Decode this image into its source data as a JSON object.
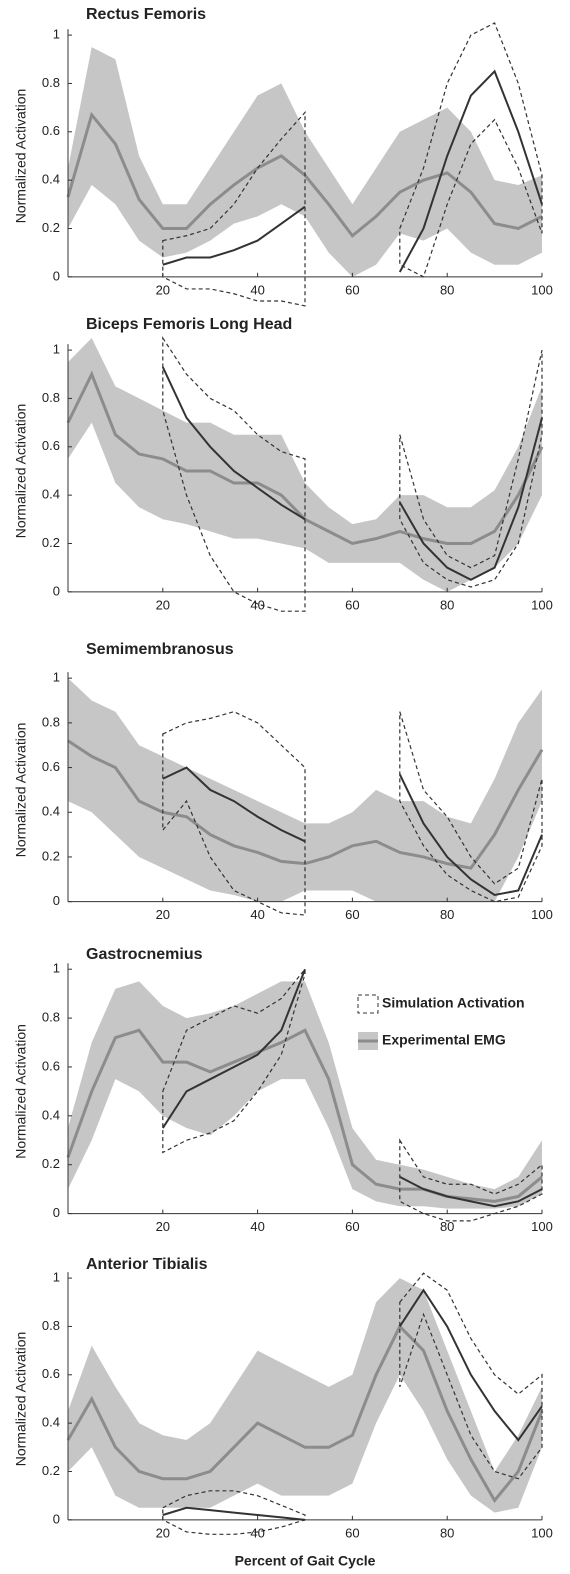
{
  "chart_data": [
    {
      "type": "line",
      "title": "Rectus Femoris",
      "y_label": "Normalized Activation",
      "x": [
        0,
        5,
        10,
        15,
        20,
        25,
        30,
        35,
        40,
        45,
        50,
        55,
        60,
        65,
        70,
        75,
        80,
        85,
        90,
        95,
        100
      ],
      "xlim": [
        0,
        100
      ],
      "xticks": [
        20,
        40,
        60,
        80,
        100
      ],
      "ylim": [
        -0.1,
        1.05
      ],
      "yticks": [
        0,
        0.2,
        0.4,
        0.6,
        0.8,
        1
      ],
      "series": [
        {
          "color": "#8c8c8c",
          "band_color": "#c6c6c6",
          "band": "fill",
          "values": [
            0.33,
            0.67,
            0.55,
            0.32,
            0.2,
            0.2,
            0.3,
            0.38,
            0.45,
            0.5,
            0.42,
            0.3,
            0.17,
            0.25,
            0.35,
            0.4,
            0.43,
            0.35,
            0.22,
            0.2,
            0.25
          ],
          "lower": [
            0.2,
            0.38,
            0.3,
            0.15,
            0.08,
            0.1,
            0.15,
            0.22,
            0.25,
            0.3,
            0.25,
            0.1,
            0.0,
            0.05,
            0.18,
            0.15,
            0.2,
            0.1,
            0.05,
            0.05,
            0.1
          ],
          "upper": [
            0.45,
            0.95,
            0.9,
            0.5,
            0.3,
            0.3,
            0.45,
            0.6,
            0.75,
            0.8,
            0.6,
            0.45,
            0.3,
            0.45,
            0.6,
            0.65,
            0.7,
            0.6,
            0.4,
            0.38,
            0.42
          ]
        },
        {
          "color": "#333333",
          "band": "dashed",
          "values": [
            null,
            null,
            null,
            null,
            0.05,
            0.08,
            0.08,
            0.11,
            0.15,
            0.22,
            0.29,
            null,
            null,
            null,
            0.02,
            0.2,
            0.5,
            0.75,
            0.85,
            0.6,
            0.3
          ],
          "lower": [
            null,
            null,
            null,
            null,
            0.0,
            -0.05,
            -0.05,
            -0.07,
            -0.1,
            -0.1,
            -0.12,
            null,
            null,
            null,
            0.05,
            0.0,
            0.3,
            0.55,
            0.65,
            0.45,
            0.18
          ],
          "upper": [
            null,
            null,
            null,
            null,
            0.15,
            0.17,
            0.2,
            0.3,
            0.45,
            0.57,
            0.68,
            null,
            null,
            null,
            0.2,
            0.45,
            0.8,
            1.0,
            1.05,
            0.8,
            0.42
          ]
        }
      ]
    },
    {
      "type": "line",
      "title": "Biceps Femoris Long Head",
      "y_label": "Normalized Activation",
      "x": [
        0,
        5,
        10,
        15,
        20,
        25,
        30,
        35,
        40,
        45,
        50,
        55,
        60,
        65,
        70,
        75,
        80,
        85,
        90,
        95,
        100
      ],
      "xlim": [
        0,
        100
      ],
      "xticks": [
        20,
        40,
        60,
        80,
        100
      ],
      "ylim": [
        -0.1,
        1.05
      ],
      "yticks": [
        0,
        0.2,
        0.4,
        0.6,
        0.8,
        1
      ],
      "series": [
        {
          "color": "#8c8c8c",
          "band_color": "#c6c6c6",
          "band": "fill",
          "values": [
            0.7,
            0.9,
            0.65,
            0.57,
            0.55,
            0.5,
            0.5,
            0.45,
            0.45,
            0.4,
            0.3,
            0.25,
            0.2,
            0.22,
            0.25,
            0.22,
            0.2,
            0.2,
            0.25,
            0.4,
            0.6
          ],
          "lower": [
            0.55,
            0.7,
            0.45,
            0.35,
            0.3,
            0.28,
            0.25,
            0.22,
            0.22,
            0.2,
            0.18,
            0.12,
            0.12,
            0.12,
            0.12,
            0.05,
            0.0,
            0.05,
            0.1,
            0.2,
            0.4
          ],
          "upper": [
            0.95,
            1.05,
            0.85,
            0.8,
            0.75,
            0.7,
            0.7,
            0.65,
            0.65,
            0.65,
            0.45,
            0.35,
            0.28,
            0.3,
            0.4,
            0.4,
            0.35,
            0.35,
            0.42,
            0.6,
            0.85
          ]
        },
        {
          "color": "#333333",
          "band": "dashed",
          "values": [
            null,
            null,
            null,
            null,
            0.93,
            0.72,
            0.6,
            0.5,
            0.43,
            0.36,
            0.3,
            null,
            null,
            null,
            0.37,
            0.2,
            0.1,
            0.05,
            0.1,
            0.35,
            0.72
          ],
          "lower": [
            null,
            null,
            null,
            null,
            0.75,
            0.4,
            0.15,
            0.0,
            -0.05,
            -0.08,
            -0.08,
            null,
            null,
            null,
            0.3,
            0.12,
            0.05,
            0.02,
            0.05,
            0.2,
            0.65
          ],
          "upper": [
            null,
            null,
            null,
            null,
            1.05,
            0.9,
            0.8,
            0.75,
            0.65,
            0.58,
            0.55,
            null,
            null,
            null,
            0.65,
            0.3,
            0.15,
            0.1,
            0.15,
            0.55,
            1.0
          ]
        }
      ]
    },
    {
      "type": "line",
      "title": "Semimembranosus",
      "y_label": "Normalized Activation",
      "x": [
        0,
        5,
        10,
        15,
        20,
        25,
        30,
        35,
        40,
        45,
        50,
        55,
        60,
        65,
        70,
        75,
        80,
        85,
        90,
        95,
        100
      ],
      "xlim": [
        0,
        100
      ],
      "xticks": [
        20,
        40,
        60,
        80,
        100
      ],
      "ylim": [
        -0.1,
        1.05
      ],
      "yticks": [
        0,
        0.2,
        0.4,
        0.6,
        0.8,
        1
      ],
      "series": [
        {
          "color": "#8c8c8c",
          "band_color": "#c6c6c6",
          "band": "fill",
          "values": [
            0.72,
            0.65,
            0.6,
            0.45,
            0.4,
            0.38,
            0.3,
            0.25,
            0.22,
            0.18,
            0.17,
            0.2,
            0.25,
            0.27,
            0.22,
            0.2,
            0.17,
            0.15,
            0.3,
            0.5,
            0.68
          ],
          "lower": [
            0.45,
            0.4,
            0.3,
            0.2,
            0.15,
            0.1,
            0.05,
            0.03,
            0.0,
            0.0,
            0.05,
            0.05,
            0.05,
            0.0,
            0.0,
            0.0,
            0.0,
            0.0,
            0.0,
            0.2,
            0.45
          ],
          "upper": [
            1.0,
            0.9,
            0.85,
            0.7,
            0.65,
            0.6,
            0.55,
            0.5,
            0.45,
            0.4,
            0.35,
            0.35,
            0.4,
            0.5,
            0.45,
            0.45,
            0.38,
            0.35,
            0.55,
            0.8,
            0.95
          ]
        },
        {
          "color": "#333333",
          "band": "dashed",
          "values": [
            null,
            null,
            null,
            null,
            0.55,
            0.6,
            0.5,
            0.45,
            0.38,
            0.32,
            0.27,
            null,
            null,
            null,
            0.57,
            0.35,
            0.2,
            0.1,
            0.03,
            0.05,
            0.3
          ],
          "lower": [
            null,
            null,
            null,
            null,
            0.32,
            0.45,
            0.2,
            0.05,
            0.0,
            -0.05,
            -0.06,
            null,
            null,
            null,
            0.45,
            0.25,
            0.12,
            0.05,
            0.0,
            0.02,
            0.25
          ],
          "upper": [
            null,
            null,
            null,
            null,
            0.75,
            0.8,
            0.82,
            0.85,
            0.8,
            0.7,
            0.6,
            null,
            null,
            null,
            0.85,
            0.5,
            0.38,
            0.2,
            0.08,
            0.15,
            0.55
          ]
        }
      ]
    },
    {
      "type": "line",
      "title": "Gastrocnemius",
      "y_label": "Normalized Activation",
      "x": [
        0,
        5,
        10,
        15,
        20,
        25,
        30,
        35,
        40,
        45,
        50,
        55,
        60,
        65,
        70,
        75,
        80,
        85,
        90,
        95,
        100
      ],
      "xlim": [
        0,
        100
      ],
      "xticks": [
        20,
        40,
        60,
        80,
        100
      ],
      "ylim": [
        -0.1,
        1.05
      ],
      "yticks": [
        0,
        0.2,
        0.4,
        0.6,
        0.8,
        1
      ],
      "series": [
        {
          "name": "Experimental EMG",
          "color": "#8c8c8c",
          "band_color": "#c6c6c6",
          "band": "fill",
          "values": [
            0.23,
            0.5,
            0.72,
            0.75,
            0.62,
            0.62,
            0.58,
            0.62,
            0.66,
            0.7,
            0.75,
            0.55,
            0.2,
            0.12,
            0.1,
            0.1,
            0.07,
            0.06,
            0.05,
            0.07,
            0.15
          ],
          "lower": [
            0.1,
            0.3,
            0.55,
            0.5,
            0.4,
            0.35,
            0.32,
            0.4,
            0.5,
            0.55,
            0.55,
            0.35,
            0.1,
            0.05,
            0.03,
            0.03,
            0.02,
            0.02,
            0.02,
            0.03,
            0.08
          ],
          "upper": [
            0.35,
            0.7,
            0.92,
            0.95,
            0.85,
            0.8,
            0.82,
            0.85,
            0.9,
            0.95,
            0.95,
            0.7,
            0.35,
            0.22,
            0.2,
            0.18,
            0.15,
            0.12,
            0.1,
            0.15,
            0.3
          ]
        },
        {
          "name": "Simulation Activation",
          "color": "#333333",
          "band": "dashed",
          "values": [
            null,
            null,
            null,
            null,
            0.35,
            0.5,
            0.55,
            0.6,
            0.65,
            0.75,
            1.0,
            null,
            null,
            null,
            0.15,
            0.1,
            0.07,
            0.05,
            0.03,
            0.05,
            0.1
          ],
          "lower": [
            null,
            null,
            null,
            null,
            0.25,
            0.3,
            0.33,
            0.38,
            0.5,
            0.65,
            0.98,
            null,
            null,
            null,
            0.05,
            0.0,
            -0.03,
            -0.03,
            0.0,
            0.03,
            0.08
          ],
          "upper": [
            null,
            null,
            null,
            null,
            0.5,
            0.75,
            0.8,
            0.85,
            0.82,
            0.88,
            1.0,
            null,
            null,
            null,
            0.3,
            0.15,
            0.12,
            0.12,
            0.08,
            0.12,
            0.2
          ]
        }
      ]
    },
    {
      "type": "line",
      "title": "Anterior Tibialis",
      "y_label": "Normalized Activation",
      "x_label": "Percent of Gait Cycle",
      "x": [
        0,
        5,
        10,
        15,
        20,
        25,
        30,
        35,
        40,
        45,
        50,
        55,
        60,
        65,
        70,
        75,
        80,
        85,
        90,
        95,
        100
      ],
      "xlim": [
        0,
        100
      ],
      "xticks": [
        20,
        40,
        60,
        80,
        100
      ],
      "ylim": [
        -0.1,
        1.05
      ],
      "yticks": [
        0,
        0.2,
        0.4,
        0.6,
        0.8,
        1
      ],
      "series": [
        {
          "color": "#8c8c8c",
          "band_color": "#c6c6c6",
          "band": "fill",
          "values": [
            0.33,
            0.5,
            0.3,
            0.2,
            0.17,
            0.17,
            0.2,
            0.3,
            0.4,
            0.35,
            0.3,
            0.3,
            0.35,
            0.6,
            0.8,
            0.7,
            0.45,
            0.25,
            0.08,
            0.2,
            0.45
          ],
          "lower": [
            0.2,
            0.3,
            0.1,
            0.05,
            0.05,
            0.05,
            0.05,
            0.1,
            0.15,
            0.1,
            0.1,
            0.1,
            0.15,
            0.4,
            0.6,
            0.45,
            0.25,
            0.1,
            0.03,
            0.05,
            0.3
          ],
          "upper": [
            0.45,
            0.72,
            0.55,
            0.4,
            0.35,
            0.33,
            0.4,
            0.55,
            0.7,
            0.65,
            0.6,
            0.55,
            0.6,
            0.9,
            1.0,
            0.95,
            0.7,
            0.45,
            0.2,
            0.35,
            0.55
          ]
        },
        {
          "color": "#333333",
          "band": "dashed",
          "values": [
            null,
            null,
            null,
            null,
            0.02,
            0.05,
            0.04,
            0.03,
            0.02,
            0.01,
            0.0,
            null,
            null,
            null,
            0.8,
            0.95,
            0.8,
            0.6,
            0.45,
            0.33,
            0.47
          ],
          "lower": [
            null,
            null,
            null,
            null,
            0.0,
            -0.05,
            -0.06,
            -0.06,
            -0.05,
            -0.03,
            0.0,
            null,
            null,
            null,
            0.55,
            0.85,
            0.6,
            0.35,
            0.2,
            0.17,
            0.3
          ],
          "upper": [
            null,
            null,
            null,
            null,
            0.05,
            0.1,
            0.12,
            0.12,
            0.1,
            0.06,
            0.02,
            null,
            null,
            null,
            0.9,
            1.02,
            0.95,
            0.75,
            0.6,
            0.52,
            0.6
          ]
        }
      ]
    }
  ]
}
